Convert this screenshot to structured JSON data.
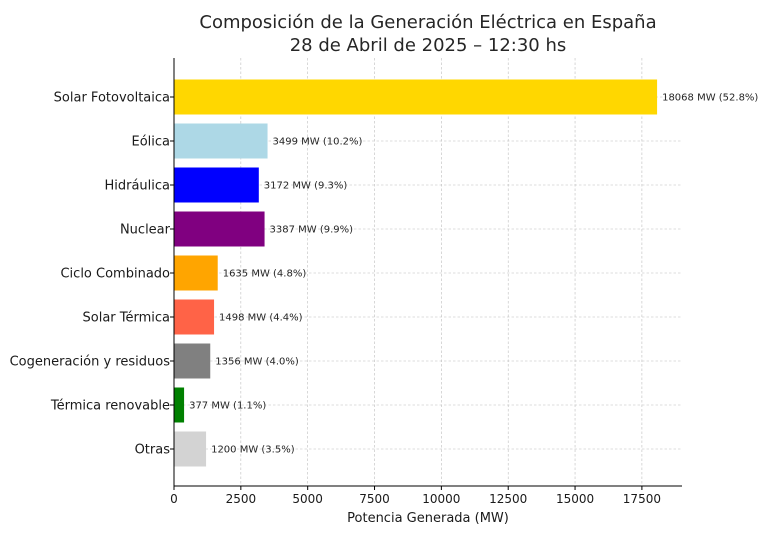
{
  "chart_data": {
    "type": "bar",
    "orientation": "horizontal",
    "title_line1": "Composición de la Generación Eléctrica en España",
    "title_line2": "28 de Abril de 2025 – 12:30 hs",
    "xlabel": "Potencia Generada (MW)",
    "ylabel": "",
    "xlim": [
      0,
      19000
    ],
    "xticks": [
      0,
      2500,
      5000,
      7500,
      10000,
      12500,
      15000,
      17500
    ],
    "grid": true,
    "categories": [
      "Solar Fotovoltaica",
      "Eólica",
      "Hidráulica",
      "Nuclear",
      "Ciclo Combinado",
      "Solar Térmica",
      "Cogeneración y residuos",
      "Térmica renovable",
      "Otras"
    ],
    "values": [
      18068,
      3499,
      3172,
      3387,
      1635,
      1498,
      1356,
      377,
      1200
    ],
    "data_labels": [
      "18068 MW (52.8%)",
      "3499 MW (10.2%)",
      "3172 MW (9.3%)",
      "3387 MW (9.9%)",
      "1635 MW (4.8%)",
      "1498 MW (4.4%)",
      "1356 MW (4.0%)",
      "377 MW (1.1%)",
      "1200 MW (3.5%)"
    ],
    "colors": [
      "#FFD700",
      "#ADD8E6",
      "#0000FF",
      "#800080",
      "#FFA500",
      "#FF6347",
      "#808080",
      "#008000",
      "#D3D3D3"
    ]
  }
}
